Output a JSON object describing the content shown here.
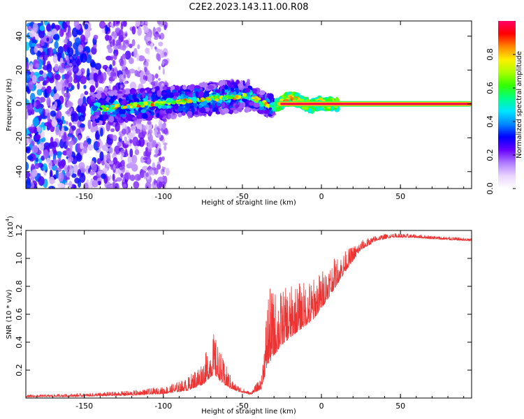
{
  "title": "C2E2.2023.143.11.00.R08",
  "colors": {
    "snr_line": "#ee3333",
    "axis": "#000000",
    "background": "#ffffff"
  },
  "chart_data": [
    {
      "type": "heatmap",
      "xlabel": "Height of straight line (km)",
      "ylabel": "Frequency (Hz)",
      "xlim": [
        -187,
        95
      ],
      "ylim": [
        -50,
        49
      ],
      "x_ticks": [
        -150,
        -100,
        -50,
        0,
        50
      ],
      "y_ticks": [
        -40,
        -20,
        0,
        20,
        40
      ],
      "colorbar": {
        "label": "Normalized spectral amplitude",
        "range": [
          0,
          1
        ],
        "ticks": [
          "0.0",
          "0.2",
          "0.4",
          "0.6",
          "0.8"
        ],
        "colormap": [
          "#ffffff",
          "#e8d4ff",
          "#b07aff",
          "#6600ff",
          "#0000ff",
          "#0088ff",
          "#00e5ff",
          "#00ff88",
          "#33ff00",
          "#aaff00",
          "#ffee00",
          "#ff8800",
          "#ff0000",
          "#ff0066"
        ]
      },
      "description_bands": [
        {
          "x_range": [
            -187,
            -100
          ],
          "content": "scattered noise, low amplitude"
        },
        {
          "x_range": [
            -145,
            -30
          ],
          "content": "signal band near 0 Hz drifting upward to ~10 Hz"
        },
        {
          "x_range": [
            -30,
            10
          ],
          "content": "narrow signal near 0 Hz, amplitude ~0.9"
        },
        {
          "x_range": [
            10,
            95
          ],
          "content": "steady tone at 0 Hz, amplitude 1.0"
        }
      ]
    },
    {
      "type": "line",
      "xlabel": "Height of straight line (km)",
      "ylabel": "SNR (10 * v/v)",
      "y_multiplier_label": "(x10",
      "y_multiplier_exp": "4",
      "y_multiplier_close": ")",
      "xlim": [
        -187,
        95
      ],
      "ylim": [
        0,
        12000
      ],
      "x_ticks": [
        -150,
        -100,
        -50,
        0,
        50
      ],
      "y_ticks": [
        2000,
        4000,
        6000,
        8000,
        10000,
        12000
      ],
      "y_tick_labels": [
        "0.2",
        "0.4",
        "0.6",
        "0.8",
        "1.0",
        "1.2"
      ],
      "envelope": [
        {
          "x": -187,
          "base": 120,
          "amp": 150
        },
        {
          "x": -150,
          "base": 180,
          "amp": 220
        },
        {
          "x": -120,
          "base": 300,
          "amp": 350
        },
        {
          "x": -100,
          "base": 450,
          "amp": 500
        },
        {
          "x": -85,
          "base": 800,
          "amp": 900
        },
        {
          "x": -75,
          "base": 1500,
          "amp": 1800
        },
        {
          "x": -68,
          "base": 2600,
          "amp": 3000
        },
        {
          "x": -62,
          "base": 1500,
          "amp": 1800
        },
        {
          "x": -55,
          "base": 700,
          "amp": 500
        },
        {
          "x": -45,
          "base": 300,
          "amp": 200
        },
        {
          "x": -38,
          "base": 900,
          "amp": 900
        },
        {
          "x": -34,
          "base": 4000,
          "amp": 5500
        },
        {
          "x": -25,
          "base": 5000,
          "amp": 4000
        },
        {
          "x": -15,
          "base": 5800,
          "amp": 3500
        },
        {
          "x": -5,
          "base": 6500,
          "amp": 3000
        },
        {
          "x": 5,
          "base": 8000,
          "amp": 2500
        },
        {
          "x": 15,
          "base": 9500,
          "amp": 1500
        },
        {
          "x": 25,
          "base": 10800,
          "amp": 700
        },
        {
          "x": 35,
          "base": 11400,
          "amp": 400
        },
        {
          "x": 45,
          "base": 11600,
          "amp": 300
        },
        {
          "x": 60,
          "base": 11550,
          "amp": 250
        },
        {
          "x": 80,
          "base": 11400,
          "amp": 250
        },
        {
          "x": 95,
          "base": 11300,
          "amp": 200
        }
      ]
    }
  ]
}
